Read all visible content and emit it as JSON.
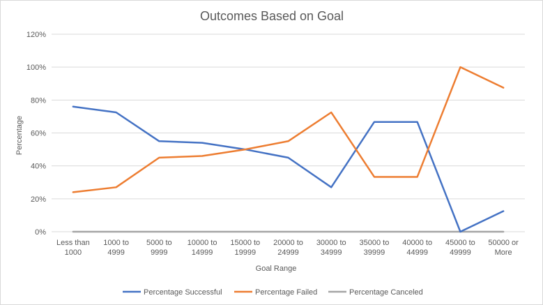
{
  "chart_data": {
    "type": "line",
    "title": "Outcomes Based on Goal",
    "xlabel": "Goal Range",
    "ylabel": "Percentage",
    "categories": [
      [
        "Less than",
        "1000"
      ],
      [
        "1000 to",
        "4999"
      ],
      [
        "5000 to",
        "9999"
      ],
      [
        "10000 to",
        "14999"
      ],
      [
        "15000 to",
        "19999"
      ],
      [
        "20000 to",
        "24999"
      ],
      [
        "30000 to",
        "34999"
      ],
      [
        "35000 to",
        "39999"
      ],
      [
        "40000 to",
        "44999"
      ],
      [
        "45000 to",
        "49999"
      ],
      [
        "50000 or",
        "More"
      ]
    ],
    "yticks": [
      "0%",
      "20%",
      "40%",
      "60%",
      "80%",
      "100%",
      "120%"
    ],
    "ylim": [
      0,
      120
    ],
    "grid": true,
    "legend_position": "bottom",
    "series": [
      {
        "name": "Percentage Successful",
        "color": "#4472C4",
        "values": [
          76,
          72.5,
          55,
          54,
          50,
          45,
          27,
          66.7,
          66.7,
          0,
          12.5
        ]
      },
      {
        "name": "Percentage Failed",
        "color": "#ED7D31",
        "values": [
          24,
          27,
          45,
          46,
          50,
          55,
          72.5,
          33.3,
          33.3,
          100,
          87.5
        ]
      },
      {
        "name": "Percentage Canceled",
        "color": "#A5A5A5",
        "values": [
          0,
          0,
          0,
          0,
          0,
          0,
          0,
          0,
          0,
          0,
          0
        ]
      }
    ]
  }
}
